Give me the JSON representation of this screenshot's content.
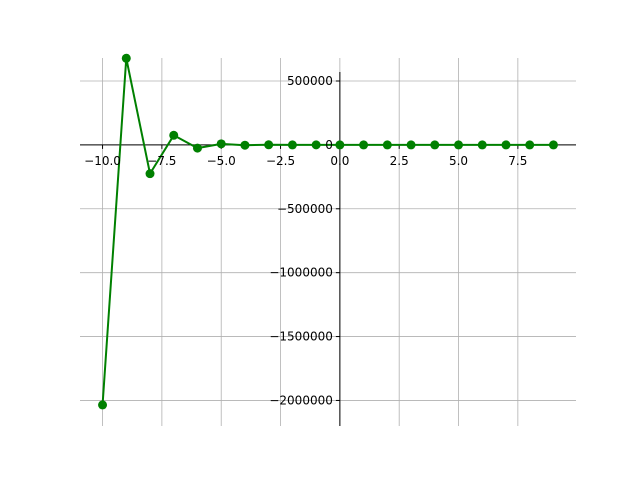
{
  "chart_data": {
    "type": "line",
    "title": "",
    "xlabel": "",
    "ylabel": "",
    "xlim": [
      -10.95,
      9.95
    ],
    "ylim": [
      -2200000,
      680000
    ],
    "grid": true,
    "spines": "centered at origin",
    "x_ticks": [
      -10.0,
      -7.5,
      -5.0,
      -2.5,
      0.0,
      2.5,
      5.0,
      7.5
    ],
    "x_tick_labels": [
      "−10.0",
      "−7.5",
      "−5.0",
      "−2.5",
      "0.0",
      "2.5",
      "5.0",
      "7.5"
    ],
    "y_ticks": [
      500000,
      0,
      -500000,
      -1000000,
      -1500000,
      -2000000
    ],
    "y_tick_labels": [
      "500000",
      "0",
      "−500000",
      "−1000000",
      "−1500000",
      "−2000000"
    ],
    "series": [
      {
        "color": "#008000",
        "marker": "circle",
        "x": [
          -10,
          -9,
          -8,
          -7,
          -6,
          -5,
          -4,
          -3,
          -2,
          -1,
          0,
          1,
          2,
          3,
          4,
          5,
          6,
          7,
          8,
          9
        ],
        "y": [
          -2035000,
          678000,
          -225000,
          75000,
          -25000,
          8000,
          -2500,
          800,
          -250,
          80,
          0,
          0,
          0,
          0,
          0,
          0,
          0,
          0,
          0,
          0
        ]
      }
    ]
  }
}
